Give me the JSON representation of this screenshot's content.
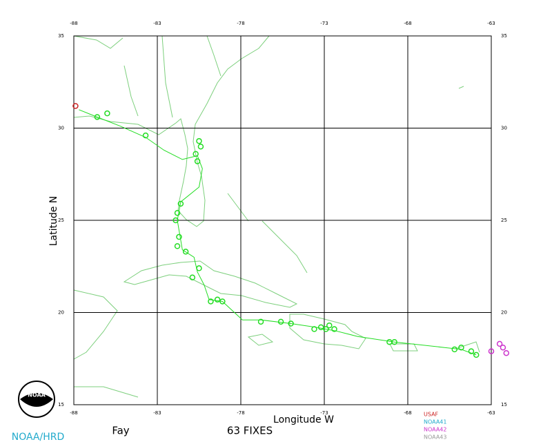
{
  "chart_data": {
    "type": "track-map",
    "x_label": "Longitude W",
    "y_label": "Latitude N",
    "storm": "Fay",
    "fix_count": "63 FIXES",
    "agency": "NOAA/HRD",
    "logo": "NOAA",
    "xlim": [
      -88,
      -63
    ],
    "xticks": [
      -88,
      -83,
      -78,
      -73,
      -68,
      -63
    ],
    "ylim": [
      15,
      35
    ],
    "yticks": [
      15,
      20,
      25,
      30,
      35
    ],
    "grid": true,
    "track": {
      "color": "#22dd22",
      "x": [
        -63.9,
        -64.8,
        -65.8,
        -68.8,
        -71.0,
        -72.3,
        -73.5,
        -75.0,
        -76.8,
        -77.9,
        -79.1,
        -79.9,
        -80.2,
        -80.6,
        -80.8,
        -81.5,
        -81.8,
        -81.6,
        -80.5,
        -80.3,
        -80.6,
        -81.5,
        -82.6,
        -83.7,
        -85.2,
        -86.6,
        -87.7
      ],
      "y": [
        17.7,
        18.0,
        18.1,
        18.4,
        18.7,
        19.0,
        19.2,
        19.4,
        19.6,
        19.6,
        20.6,
        20.7,
        21.5,
        22.2,
        23.0,
        23.4,
        25.0,
        26.0,
        26.8,
        27.8,
        28.5,
        28.3,
        28.8,
        29.5,
        30.1,
        30.6,
        31.0
      ]
    },
    "fixes": [
      {
        "color": "#22dd22",
        "x": [
          -63.9,
          -64.2,
          -64.8,
          -65.2,
          -68.8,
          -69.1,
          -72.4,
          -72.7,
          -72.9,
          -73.2,
          -73.6,
          -75.0,
          -75.6,
          -76.8,
          -79.1,
          -79.4,
          -79.8,
          -80.5,
          -80.9,
          -81.8,
          -81.7,
          -81.9,
          -81.8,
          -81.6,
          -81.3,
          -80.4,
          -80.7,
          -80.6,
          -80.5,
          -83.7,
          -86.0,
          -86.6
        ],
        "y": [
          17.7,
          17.9,
          18.1,
          18.0,
          18.4,
          18.4,
          19.1,
          19.3,
          19.1,
          19.2,
          19.1,
          19.4,
          19.5,
          19.5,
          20.6,
          20.7,
          20.6,
          22.4,
          21.9,
          23.6,
          24.1,
          25.0,
          25.4,
          25.9,
          23.3,
          29.0,
          28.6,
          28.2,
          29.3,
          29.6,
          30.8,
          30.6
        ]
      },
      {
        "color": "#cc33cc",
        "x": [
          -63.0,
          -62.5,
          -62.3,
          -62.1
        ],
        "y": [
          17.9,
          18.3,
          18.1,
          17.8
        ]
      },
      {
        "color": "#cc2222",
        "x": [
          -87.9
        ],
        "y": [
          31.2
        ]
      }
    ],
    "legend": [
      {
        "label": "USAF",
        "color": "#cc2222"
      },
      {
        "label": "NOAA41",
        "color": "#22aacc"
      },
      {
        "label": "NOAA42",
        "color": "#cc33cc"
      },
      {
        "label": "NOAA43",
        "color": "#999999"
      }
    ]
  }
}
